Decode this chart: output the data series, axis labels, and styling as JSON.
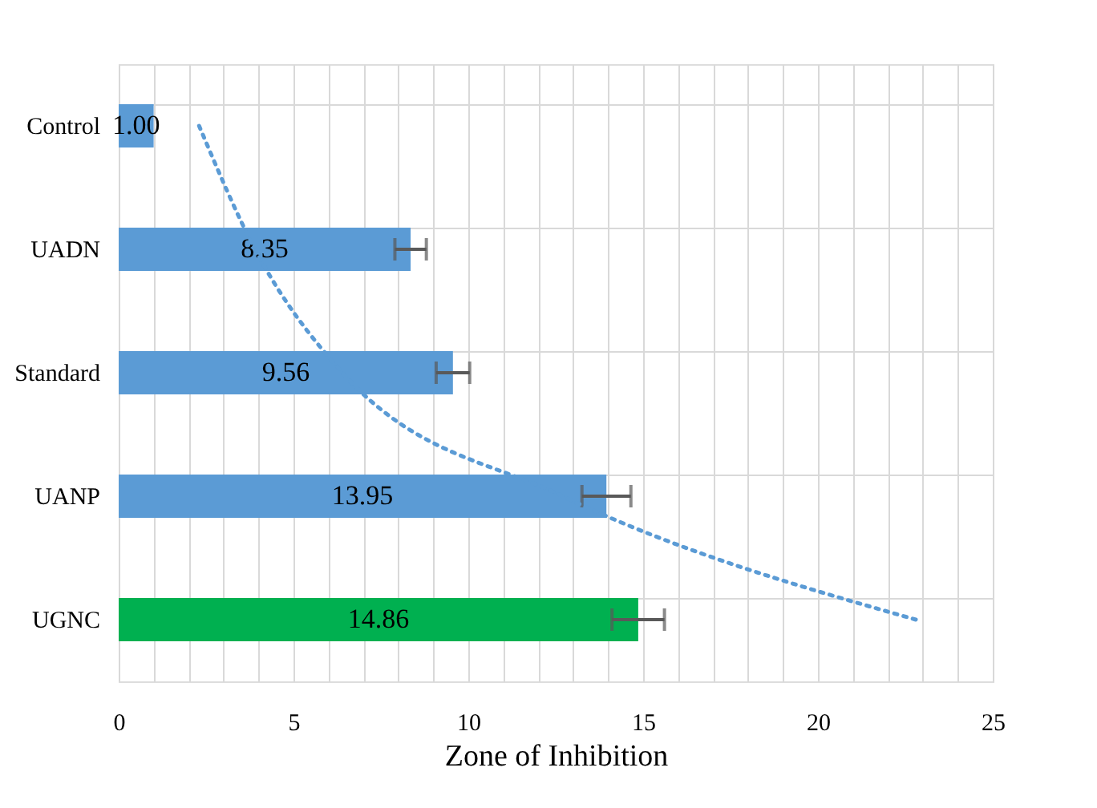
{
  "chart_data": {
    "type": "bar",
    "orientation": "horizontal",
    "xlabel": "Zone of Inhibition",
    "categories": [
      "Control",
      "UADN",
      "Standard",
      "UANP",
      "UGNC"
    ],
    "series": [
      {
        "values": [
          1.0,
          8.35,
          9.56,
          13.95,
          14.86
        ],
        "value_labels": [
          "1.00",
          "8.35",
          "9.56",
          "13.95",
          "14.86"
        ],
        "colors": [
          "#5b9bd5",
          "#5b9bd5",
          "#5b9bd5",
          "#5b9bd5",
          "#00b050"
        ],
        "errors": [
          null,
          0.45,
          0.48,
          0.7,
          0.75
        ]
      },
      {
        "type": "line",
        "color": "#5b9bd5",
        "line_style": "dotted",
        "marker": "none",
        "values": [
          2.3,
          3.9,
          6.4,
          12.7,
          22.8
        ]
      }
    ],
    "xlim": [
      0,
      25
    ],
    "xticks": [
      0,
      {
        "value": 1,
        "label": null
      },
      {
        "value": 2,
        "label": null
      },
      {
        "value": 3,
        "label": null
      },
      {
        "value": 4,
        "label": null
      },
      5,
      {
        "value": 6,
        "label": null
      },
      {
        "value": 7,
        "label": null
      },
      {
        "value": 8,
        "label": null
      },
      {
        "value": 9,
        "label": null
      },
      10,
      {
        "value": 11,
        "label": null
      },
      {
        "value": 12,
        "label": null
      },
      {
        "value": 13,
        "label": null
      },
      {
        "value": 14,
        "label": null
      },
      15,
      {
        "value": 16,
        "label": null
      },
      {
        "value": 17,
        "label": null
      },
      {
        "value": 18,
        "label": null
      },
      {
        "value": 19,
        "label": null
      },
      20,
      {
        "value": 21,
        "label": null
      },
      {
        "value": 22,
        "label": null
      },
      {
        "value": 23,
        "label": null
      },
      {
        "value": 24,
        "label": null
      },
      25
    ],
    "grid": true
  }
}
